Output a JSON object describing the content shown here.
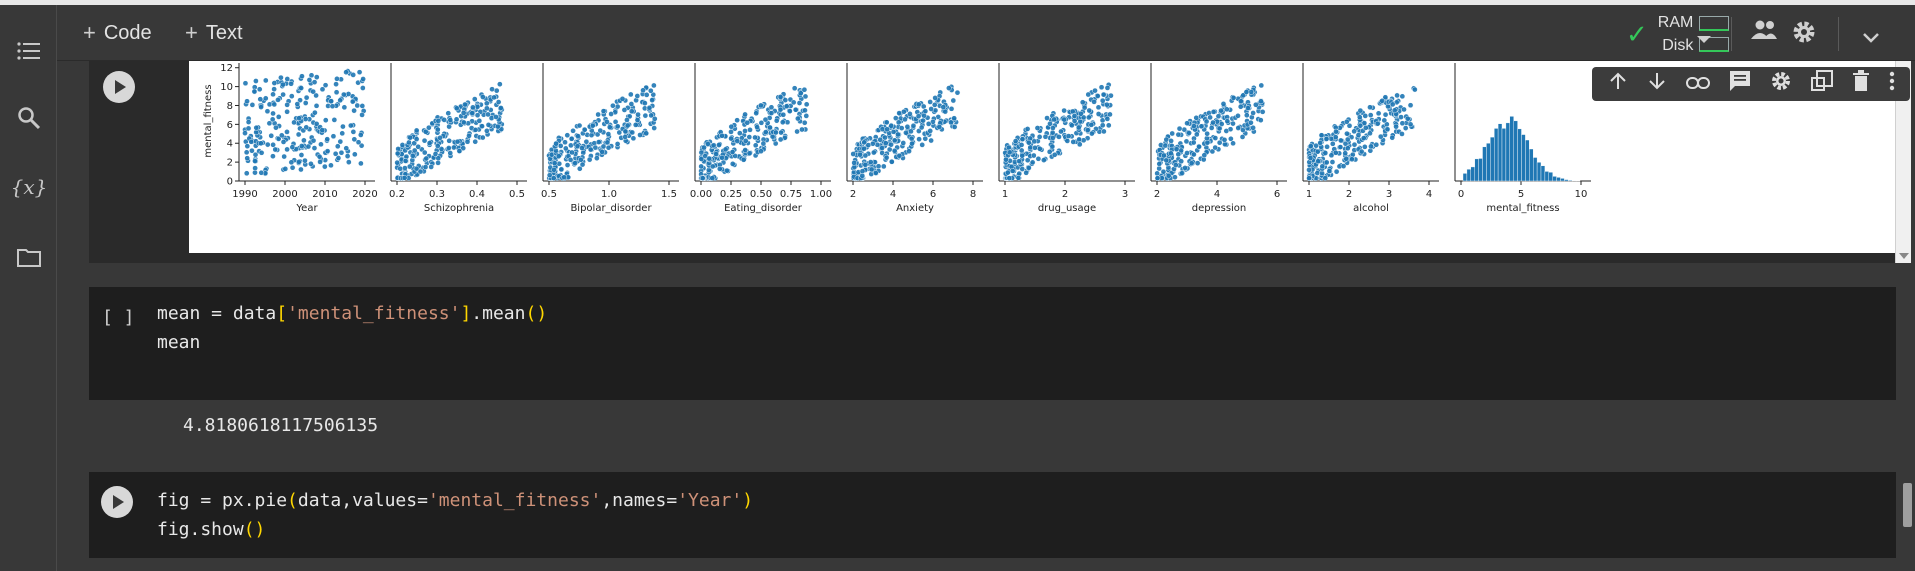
{
  "toolbar": {
    "code_label": "Code",
    "text_label": "Text",
    "ram_label": "RAM",
    "disk_label": "Disk"
  },
  "icons": {
    "rail": [
      "menu-icon",
      "search-icon",
      "variables-icon",
      "folder-icon"
    ],
    "celltools": [
      "arrow-up-icon",
      "arrow-down-icon",
      "link-icon",
      "comment-icon",
      "gear-icon",
      "mirror-cell-icon",
      "delete-icon",
      "more-icon"
    ]
  },
  "variables_label": "{x}",
  "cell2": {
    "brackets": "[ ]",
    "line1": [
      "mean = data",
      "[",
      "'mental_fitness'",
      "]",
      ".mean",
      "()"
    ],
    "line2": "mean",
    "output": "4.8180618117506135"
  },
  "cell3": {
    "line1": [
      "fig = px.pie",
      "(",
      "data,values=",
      "'mental_fitness'",
      ",names=",
      "'Year'",
      ")"
    ],
    "line2": [
      "fig.show",
      "()"
    ]
  },
  "chart_data": {
    "type": "scatter",
    "ylabel": "mental_fitness",
    "yticks": [
      "0",
      "2",
      "4",
      "6",
      "8",
      "10",
      "12"
    ],
    "ylim": [
      0,
      12.5
    ],
    "panels": [
      {
        "xlabel": "Year",
        "xticks": [
          "1990",
          "2000",
          "2010",
          "2020"
        ]
      },
      {
        "xlabel": "Schizophrenia",
        "xticks": [
          "0.2",
          "0.3",
          "0.4",
          "0.5"
        ]
      },
      {
        "xlabel": "Bipolar_disorder",
        "xticks": [
          "0.5",
          "1.0",
          "1.5"
        ]
      },
      {
        "xlabel": "Eating_disorder",
        "xticks": [
          "0.00",
          "0.25",
          "0.50",
          "0.75",
          "1.00"
        ]
      },
      {
        "xlabel": "Anxiety",
        "xticks": [
          "2",
          "4",
          "6",
          "8"
        ]
      },
      {
        "xlabel": "drug_usage",
        "xticks": [
          "1",
          "2",
          "3"
        ]
      },
      {
        "xlabel": "depression",
        "xticks": [
          "2",
          "4",
          "6"
        ]
      },
      {
        "xlabel": "alcohol",
        "xticks": [
          "1",
          "2",
          "3",
          "4"
        ]
      },
      {
        "xlabel": "mental_fitness",
        "xticks": [
          "0",
          "5",
          "10"
        ],
        "histogram": true
      }
    ],
    "color": "#1f77b4"
  }
}
